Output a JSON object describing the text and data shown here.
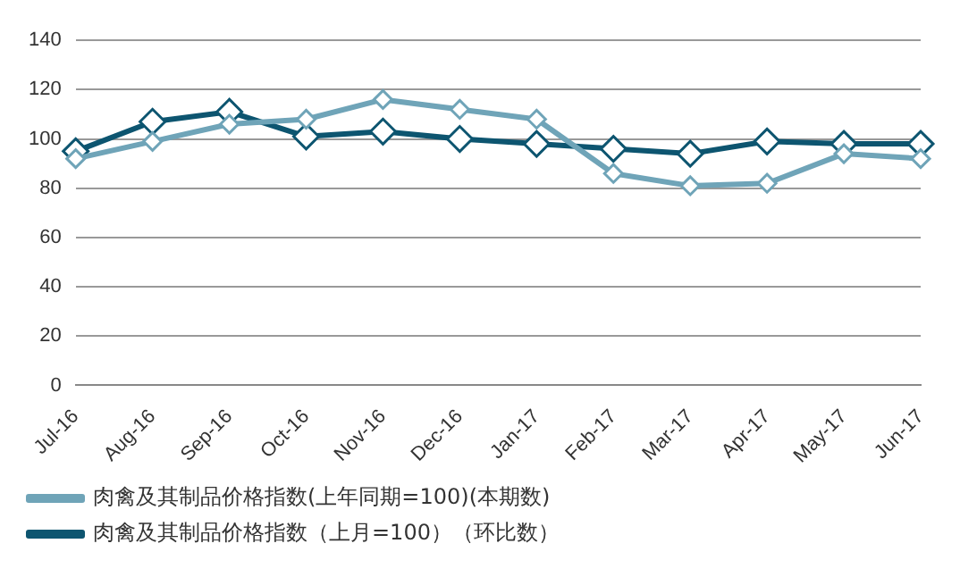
{
  "chart_data": {
    "type": "line",
    "categories": [
      "Jul-16",
      "Aug-16",
      "Sep-16",
      "Oct-16",
      "Nov-16",
      "Dec-16",
      "Jan-17",
      "Feb-17",
      "Mar-17",
      "Apr-17",
      "May-17",
      "Jun-17"
    ],
    "series": [
      {
        "name": "肉禽及其制品价格指数(上年同期=100)(本期数)",
        "color": "#6fa4b8",
        "values": [
          92,
          99,
          106,
          108,
          116,
          112,
          108,
          86,
          81,
          82,
          94,
          92
        ]
      },
      {
        "name": "肉禽及其制品价格指数（上月=100）（环比数）",
        "color": "#0d5570",
        "values": [
          95,
          107,
          111,
          101,
          103,
          100,
          98,
          96,
          94,
          99,
          98,
          98
        ]
      }
    ],
    "ylim": [
      0,
      140
    ],
    "yticks": [
      0,
      20,
      40,
      60,
      80,
      100,
      120,
      140
    ],
    "grid": "y",
    "legend": "bottom",
    "marker": "diamond",
    "line_style": "solid"
  }
}
